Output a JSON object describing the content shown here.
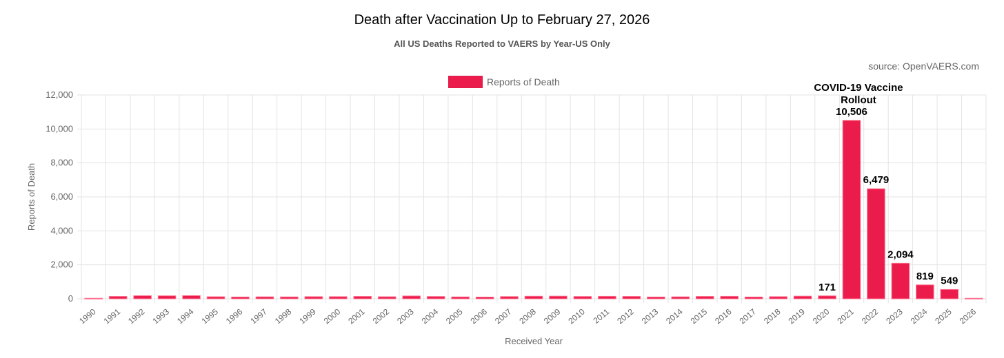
{
  "header": {
    "title": "Death after Vaccination Up to February 27, 2026",
    "subtitle": "All US Deaths Reported to VAERS by Year-US Only",
    "source": "source: OpenVAERS.com"
  },
  "chart_data": {
    "type": "bar",
    "title": "Death after Vaccination Up to February 27, 2026",
    "subtitle": "All US Deaths Reported to VAERS by Year-US Only",
    "xlabel": "Received Year",
    "ylabel": "Reports of Death",
    "ylim": [
      0,
      12000
    ],
    "yticks": [
      0,
      2000,
      4000,
      6000,
      8000,
      10000,
      12000
    ],
    "ytick_labels": [
      "0",
      "2,000",
      "4,000",
      "6,000",
      "8,000",
      "10,000",
      "12,000"
    ],
    "grid": true,
    "legend_position": "top-center",
    "bar_color": "#eb1c4b",
    "bar_border_color": "#ff6f8f",
    "categories": [
      "1990",
      "1991",
      "1992",
      "1993",
      "1994",
      "1995",
      "1996",
      "1997",
      "1998",
      "1999",
      "2000",
      "2001",
      "2002",
      "2003",
      "2004",
      "2005",
      "2006",
      "2007",
      "2008",
      "2009",
      "2010",
      "2011",
      "2012",
      "2013",
      "2014",
      "2015",
      "2016",
      "2017",
      "2018",
      "2019",
      "2020",
      "2021",
      "2022",
      "2023",
      "2024",
      "2025",
      "2026"
    ],
    "series": [
      {
        "name": "Reports of Death",
        "values": [
          30,
          140,
          180,
          175,
          185,
          120,
          105,
          115,
          110,
          125,
          125,
          140,
          120,
          165,
          135,
          110,
          100,
          130,
          150,
          155,
          135,
          145,
          140,
          105,
          115,
          140,
          145,
          105,
          125,
          155,
          171,
          10506,
          6479,
          2094,
          819,
          549,
          30
        ]
      }
    ],
    "data_labels": [
      {
        "category": "2020",
        "text": "171"
      },
      {
        "category": "2021",
        "text": "10,506"
      },
      {
        "category": "2022",
        "text": "6,479"
      },
      {
        "category": "2023",
        "text": "2,094"
      },
      {
        "category": "2024",
        "text": "819"
      },
      {
        "category": "2025",
        "text": "549"
      }
    ],
    "annotation": {
      "category": "2021",
      "lines": [
        "COVID-19 Vaccine",
        "Rollout"
      ]
    }
  }
}
